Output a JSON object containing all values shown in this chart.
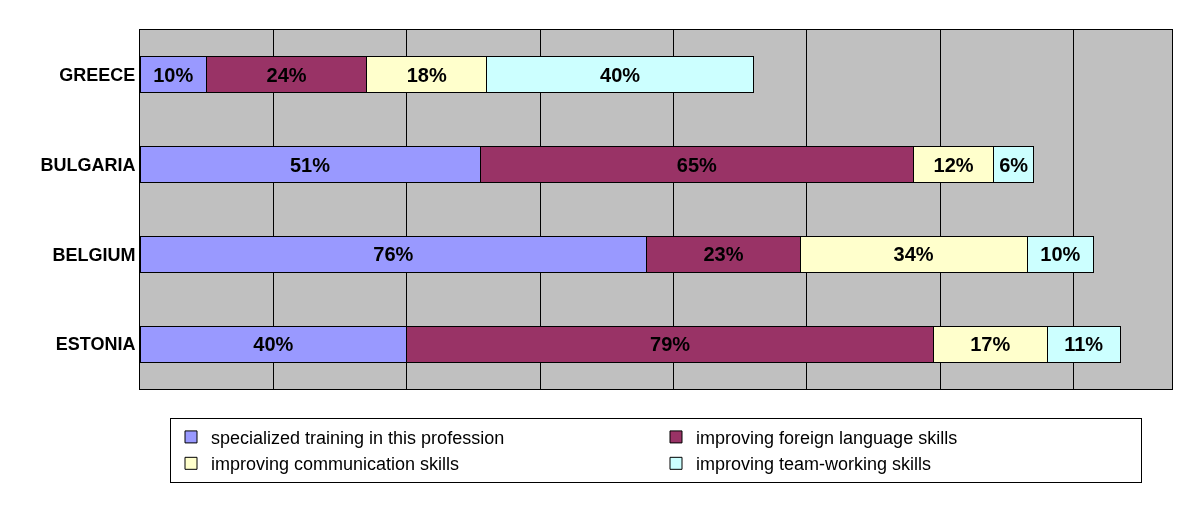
{
  "chart_data": {
    "type": "bar",
    "orientation": "horizontal",
    "stacked": true,
    "categories": [
      "GREECE",
      "BULGARIA",
      "BELGIUM",
      "ESTONIA"
    ],
    "series": [
      {
        "name": "specialized training in this profession",
        "color": "#9999ff",
        "values": [
          10,
          51,
          76,
          40
        ],
        "value_labels": [
          "10%",
          "51%",
          "76%",
          "40%"
        ]
      },
      {
        "name": "improving foreign language skills",
        "color": "#993366",
        "values": [
          24,
          65,
          23,
          79
        ],
        "value_labels": [
          "24%",
          "65%",
          "23%",
          "79%"
        ]
      },
      {
        "name": "improving communication skills",
        "color": "#ffffcc",
        "values": [
          18,
          12,
          34,
          17
        ],
        "value_labels": [
          "18%",
          "12%",
          "34%",
          "17%"
        ]
      },
      {
        "name": "improving team-working skills",
        "color": "#ccffff",
        "values": [
          40,
          6,
          10,
          11
        ],
        "value_labels": [
          "40%",
          "6%",
          "10%",
          "11%"
        ]
      }
    ],
    "grid": "x",
    "legend": "bottom",
    "tick_labels": "y"
  }
}
